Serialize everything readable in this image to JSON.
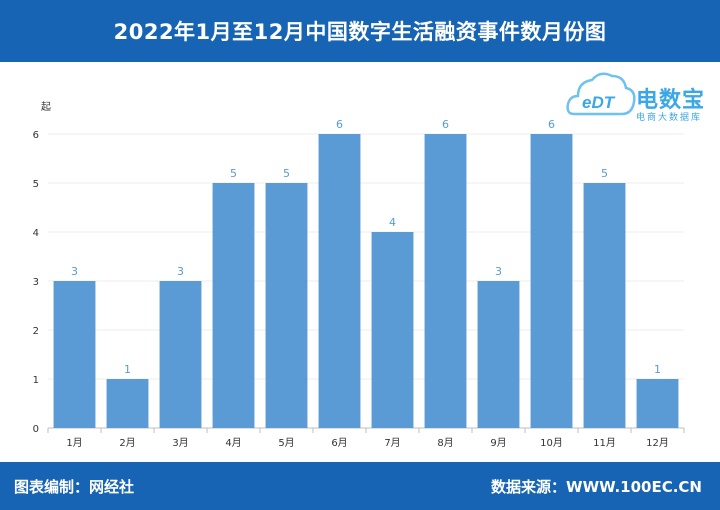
{
  "header": {
    "title": "2022年1月至12月中国数字生活融资事件数月份图"
  },
  "footer": {
    "left": "图表编制：网经社",
    "right": "数据来源：WWW.100EC.CN"
  },
  "logo": {
    "mark": "eDT",
    "main": "电数宝",
    "sub": "电商大数据库"
  },
  "colors": {
    "bar": "#5b9bd5",
    "banner": "#1764b4",
    "label": "#5a9ad6"
  },
  "chart_data": {
    "type": "bar",
    "ylabel": "起",
    "categories": [
      "1月",
      "2月",
      "3月",
      "4月",
      "5月",
      "6月",
      "7月",
      "8月",
      "9月",
      "10月",
      "11月",
      "12月"
    ],
    "values": [
      3,
      1,
      3,
      5,
      5,
      6,
      4,
      6,
      3,
      6,
      5,
      1
    ],
    "ylim": [
      0,
      6
    ],
    "yticks": [
      0,
      1,
      2,
      3,
      4,
      5,
      6
    ],
    "grid": true,
    "data_labels": true
  }
}
